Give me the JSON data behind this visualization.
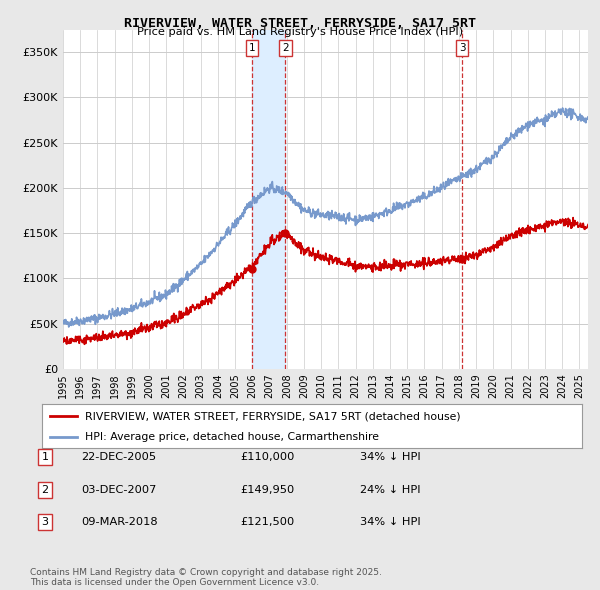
{
  "title": "RIVERVIEW, WATER STREET, FERRYSIDE, SA17 5RT",
  "subtitle": "Price paid vs. HM Land Registry's House Price Index (HPI)",
  "ylim": [
    0,
    375000
  ],
  "yticks": [
    0,
    50000,
    100000,
    150000,
    200000,
    250000,
    300000,
    350000
  ],
  "ytick_labels": [
    "£0",
    "£50K",
    "£100K",
    "£150K",
    "£200K",
    "£250K",
    "£300K",
    "£350K"
  ],
  "bg_color": "#e8e8e8",
  "plot_bg_color": "#ffffff",
  "red_color": "#cc0000",
  "blue_color": "#7799cc",
  "vline_color": "#cc3333",
  "shade_color": "#ddeeff",
  "grid_color": "#cccccc",
  "transactions": [
    {
      "date_num": 2005.97,
      "price": 110000,
      "label": "1"
    },
    {
      "date_num": 2007.92,
      "price": 149950,
      "label": "2"
    },
    {
      "date_num": 2018.19,
      "price": 121500,
      "label": "3"
    }
  ],
  "legend_entries": [
    "RIVERVIEW, WATER STREET, FERRYSIDE, SA17 5RT (detached house)",
    "HPI: Average price, detached house, Carmarthenshire"
  ],
  "table_rows": [
    {
      "num": "1",
      "date": "22-DEC-2005",
      "price": "£110,000",
      "pct": "34% ↓ HPI"
    },
    {
      "num": "2",
      "date": "03-DEC-2007",
      "price": "£149,950",
      "pct": "24% ↓ HPI"
    },
    {
      "num": "3",
      "date": "09-MAR-2018",
      "price": "£121,500",
      "pct": "34% ↓ HPI"
    }
  ],
  "footer": "Contains HM Land Registry data © Crown copyright and database right 2025.\nThis data is licensed under the Open Government Licence v3.0."
}
